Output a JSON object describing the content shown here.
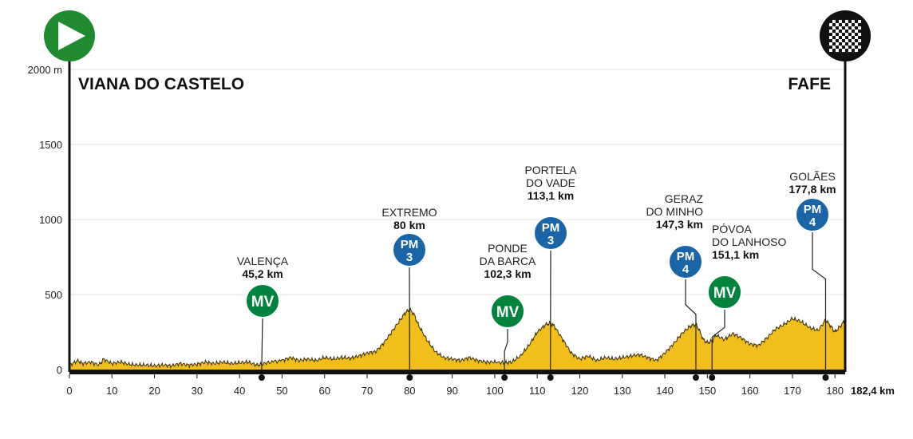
{
  "chart_data": {
    "type": "area",
    "title": "",
    "xlabel": "",
    "ylabel": "",
    "y_unit_label": "2000 m",
    "xlim": [
      0,
      182.4
    ],
    "ylim": [
      0,
      2000
    ],
    "x_ticks": [
      0,
      10,
      20,
      30,
      40,
      50,
      60,
      70,
      80,
      90,
      100,
      110,
      120,
      130,
      140,
      150,
      160,
      170,
      180
    ],
    "y_ticks": [
      0,
      500,
      1000,
      1500
    ],
    "end_label": "182,4 km",
    "start_city": "VIANA DO CASTELO",
    "finish_city": "FAFE",
    "fill_color": "#f0bf1c",
    "profile": {
      "x": [
        0,
        2,
        3,
        5,
        7,
        8,
        10,
        12,
        14,
        16,
        18,
        20,
        22,
        24,
        26,
        28,
        30,
        32,
        34,
        36,
        38,
        40,
        42,
        44,
        45.2,
        47,
        50,
        52,
        54,
        56,
        58,
        60,
        62,
        64,
        66,
        68,
        70,
        72,
        74,
        76,
        78,
        79,
        80,
        81,
        82,
        84,
        86,
        88,
        90,
        92,
        94,
        96,
        98,
        100,
        102.3,
        104,
        106,
        108,
        110,
        112,
        113.1,
        114,
        116,
        118,
        120,
        122,
        124,
        126,
        128,
        130,
        132,
        134,
        136,
        138,
        140,
        142,
        144,
        146,
        147.3,
        148,
        149,
        150,
        151.1,
        152,
        154,
        156,
        158,
        160,
        162,
        164,
        166,
        168,
        170,
        172,
        174,
        176,
        177.8,
        179,
        180,
        181,
        182.4
      ],
      "y": [
        30,
        60,
        40,
        50,
        30,
        70,
        40,
        50,
        35,
        30,
        30,
        25,
        30,
        25,
        40,
        30,
        35,
        50,
        40,
        50,
        40,
        45,
        50,
        30,
        35,
        50,
        60,
        80,
        60,
        70,
        60,
        80,
        70,
        80,
        75,
        90,
        110,
        120,
        180,
        260,
        340,
        380,
        400,
        370,
        300,
        200,
        120,
        80,
        70,
        60,
        80,
        60,
        50,
        50,
        45,
        50,
        90,
        160,
        250,
        300,
        310,
        290,
        200,
        110,
        70,
        90,
        60,
        80,
        70,
        80,
        90,
        100,
        80,
        60,
        110,
        170,
        240,
        290,
        300,
        270,
        200,
        180,
        190,
        230,
        200,
        240,
        210,
        170,
        160,
        210,
        270,
        300,
        340,
        320,
        280,
        260,
        330,
        290,
        250,
        280,
        330
      ]
    },
    "markers": [
      {
        "name_lines": [
          "VALENÇA"
        ],
        "km_label": "45,2 km",
        "km": 45.2,
        "badge": "MV",
        "category": "",
        "color": "#00843d"
      },
      {
        "name_lines": [
          "EXTREMO"
        ],
        "km_label": "80 km",
        "km": 80,
        "badge": "PM",
        "category": "3",
        "color": "#1a64a8"
      },
      {
        "name_lines": [
          "PONDE",
          "DA BARCA"
        ],
        "km_label": "102,3 km",
        "km": 102.3,
        "badge": "MV",
        "category": "",
        "color": "#00843d"
      },
      {
        "name_lines": [
          "PORTELA",
          "DO VADE"
        ],
        "km_label": "113,1 km",
        "km": 113.1,
        "badge": "PM",
        "category": "3",
        "color": "#1a64a8"
      },
      {
        "name_lines": [
          "GERAZ",
          "DO MINHO"
        ],
        "km_label": "147,3 km",
        "km": 147.3,
        "badge": "PM",
        "category": "4",
        "color": "#1a64a8"
      },
      {
        "name_lines": [
          "PÓVOA",
          "DO LANHOSO"
        ],
        "km_label": "151,1 km",
        "km": 151.1,
        "badge": "MV",
        "category": "",
        "color": "#00843d"
      },
      {
        "name_lines": [
          "GOLÃES"
        ],
        "km_label": "177,8 km",
        "km": 177.8,
        "badge": "PM",
        "category": "4",
        "color": "#1a64a8"
      }
    ],
    "start_icon": "play-icon",
    "finish_icon": "checkered-flag-icon",
    "start_icon_color": "#1f8a2e",
    "finish_icon_color": "#111111"
  }
}
